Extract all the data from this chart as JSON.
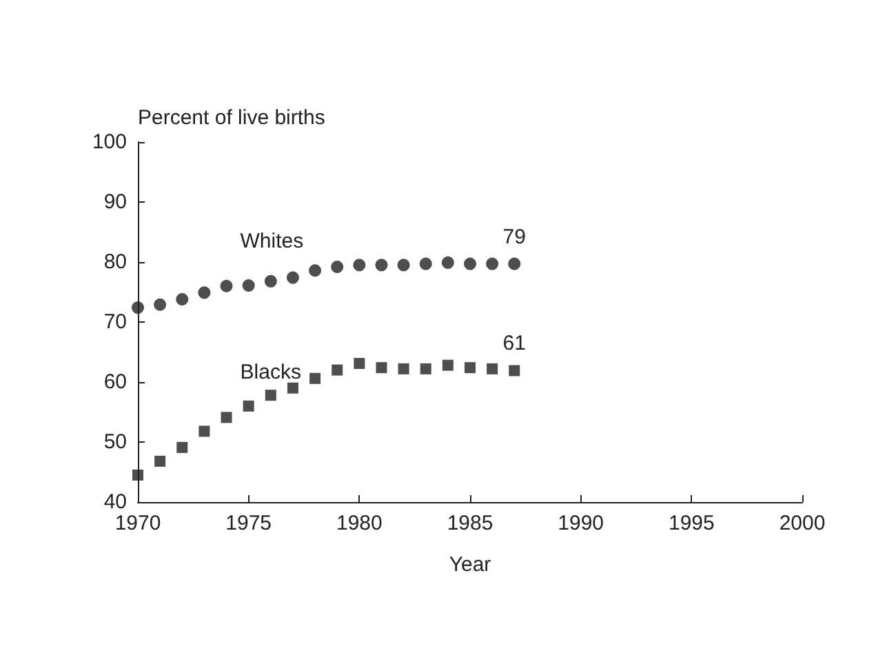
{
  "chart_data": {
    "type": "scatter",
    "xlabel": "Year",
    "ylabel": "Percent of live births",
    "x": [
      1970,
      1971,
      1972,
      1973,
      1974,
      1975,
      1976,
      1977,
      1978,
      1979,
      1980,
      1981,
      1982,
      1983,
      1984,
      1985,
      1986,
      1987
    ],
    "series": [
      {
        "name": "Whites",
        "color": "#222222",
        "marker": "circle",
        "values": [
          72.4,
          72.9,
          73.8,
          74.9,
          76.0,
          76.1,
          76.8,
          77.4,
          78.6,
          79.2,
          79.5,
          79.5,
          79.5,
          79.7,
          79.9,
          79.7,
          79.7,
          79.7
        ]
      },
      {
        "name": "Blacks",
        "color": "#222222",
        "marker": "square",
        "values": [
          44.5,
          46.8,
          49.1,
          51.8,
          54.1,
          56.0,
          57.8,
          59.0,
          60.6,
          62.0,
          63.1,
          62.4,
          62.2,
          62.2,
          62.8,
          62.4,
          62.2,
          61.9
        ]
      }
    ],
    "annotations": [
      {
        "text": "79",
        "x": 1987,
        "y": 79.7
      },
      {
        "text": "61",
        "x": 1987,
        "y": 61.9
      }
    ],
    "xlim": [
      1970,
      2000
    ],
    "xticks": [
      1970,
      1975,
      1980,
      1985,
      1990,
      1995,
      2000
    ],
    "ylim": [
      40,
      100
    ],
    "yticks": [
      40,
      50,
      60,
      70,
      80,
      90,
      100
    ],
    "grid": false,
    "legend": false
  }
}
